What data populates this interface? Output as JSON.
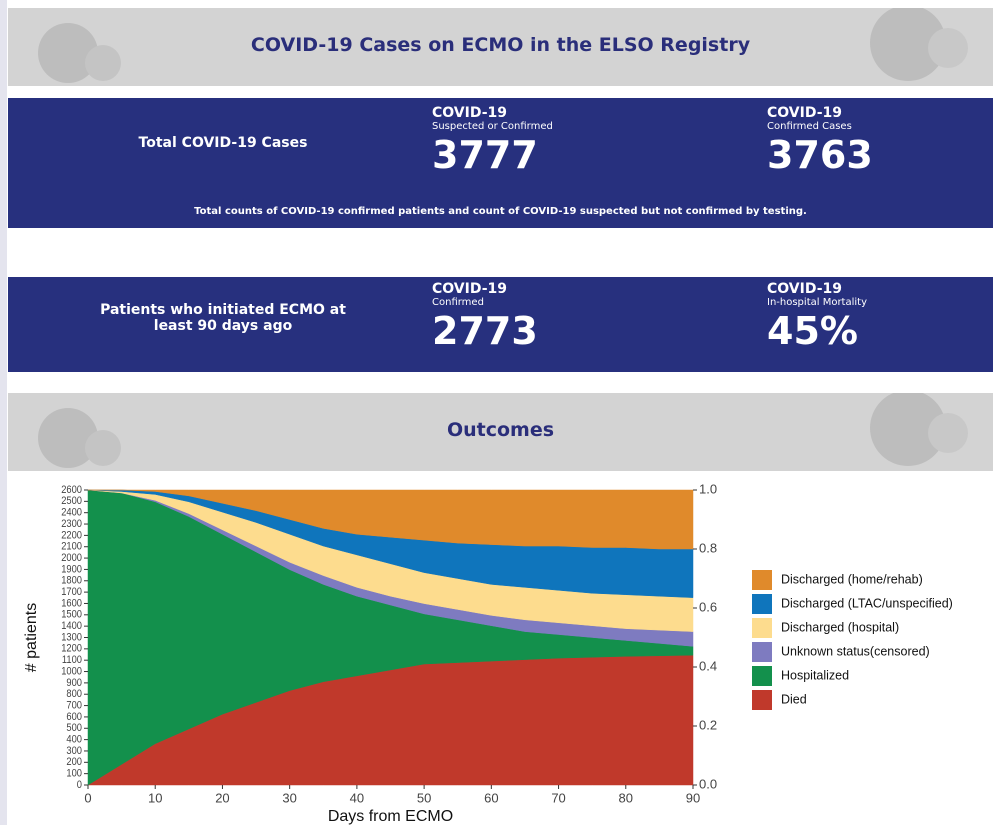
{
  "header": {
    "title": "COVID-19 Cases on ECMO in the ELSO Registry"
  },
  "panels": [
    {
      "label": "Total COVID-19 Cases",
      "kpis": [
        {
          "title": "COVID-19",
          "subtitle": "Suspected or Confirmed",
          "value": "3777"
        },
        {
          "title": "COVID-19",
          "subtitle": "Confirmed Cases",
          "value": "3763"
        }
      ],
      "note": "Total counts of COVID-19 confirmed patients and count of COVID-19 suspected but not confirmed by testing."
    },
    {
      "label": "Patients who initiated ECMO at least 90 days ago",
      "kpis": [
        {
          "title": "COVID-19",
          "subtitle": "Confirmed",
          "value": "2773"
        },
        {
          "title": "COVID-19",
          "subtitle": "In-hospital Mortality",
          "value": "45%"
        }
      ]
    }
  ],
  "section": {
    "title": "Outcomes"
  },
  "chart_data": {
    "type": "stacked-area",
    "x_label": "Days from ECMO",
    "y_label": "# patients",
    "x": [
      0,
      5,
      10,
      15,
      20,
      25,
      30,
      35,
      40,
      45,
      50,
      55,
      60,
      65,
      70,
      75,
      80,
      85,
      90
    ],
    "series": [
      {
        "name": "Died",
        "color": "#c0392b",
        "values": [
          0,
          182,
          364,
          494,
          624,
          728,
          832,
          910,
          962,
          1014,
          1066,
          1079,
          1092,
          1105,
          1118,
          1126,
          1134,
          1139,
          1144
        ]
      },
      {
        "name": "Hospitalized",
        "color": "#13904c",
        "values": [
          2600,
          2392,
          2132,
          1872,
          1586,
          1326,
          1066,
          858,
          702,
          572,
          442,
          377,
          312,
          247,
          208,
          174,
          140,
          109,
          78
        ]
      },
      {
        "name": "Unknown status(censored)",
        "color": "#7e7bc0",
        "values": [
          0,
          0,
          13,
          26,
          39,
          52,
          65,
          78,
          78,
          78,
          91,
          91,
          91,
          104,
          104,
          104,
          104,
          117,
          130
        ]
      },
      {
        "name": "Discharged (hospital)",
        "color": "#fddc8e",
        "values": [
          0,
          13,
          52,
          104,
          156,
          208,
          247,
          260,
          286,
          286,
          273,
          273,
          273,
          286,
          286,
          286,
          299,
          299,
          299
        ]
      },
      {
        "name": "Discharged (LTAC/unspecified)",
        "color": "#0f75bc",
        "values": [
          0,
          13,
          26,
          52,
          78,
          104,
          130,
          156,
          182,
          234,
          286,
          312,
          351,
          364,
          390,
          403,
          416,
          416,
          429
        ]
      },
      {
        "name": "Discharged (home/rehab)",
        "color": "#e08a2b",
        "values": [
          0,
          0,
          13,
          52,
          117,
          182,
          260,
          338,
          390,
          416,
          442,
          468,
          481,
          494,
          494,
          507,
          507,
          520,
          520
        ]
      }
    ],
    "xlim": [
      0,
      90
    ],
    "xticks": [
      0,
      10,
      20,
      30,
      40,
      50,
      60,
      70,
      80,
      90
    ],
    "ylim": [
      0,
      2600
    ],
    "yticks": [
      0,
      100,
      200,
      300,
      400,
      500,
      600,
      700,
      800,
      900,
      1000,
      1100,
      1200,
      1300,
      1400,
      1500,
      1600,
      1700,
      1800,
      1900,
      2000,
      2100,
      2200,
      2300,
      2400,
      2500,
      2600
    ],
    "y2lim": [
      0,
      1
    ],
    "y2ticks": [
      {
        "value": 0,
        "label": "0.0"
      },
      0.2,
      0.4,
      0.6,
      0.8,
      {
        "value": 1,
        "label": "1.0"
      }
    ],
    "legend": "right"
  }
}
